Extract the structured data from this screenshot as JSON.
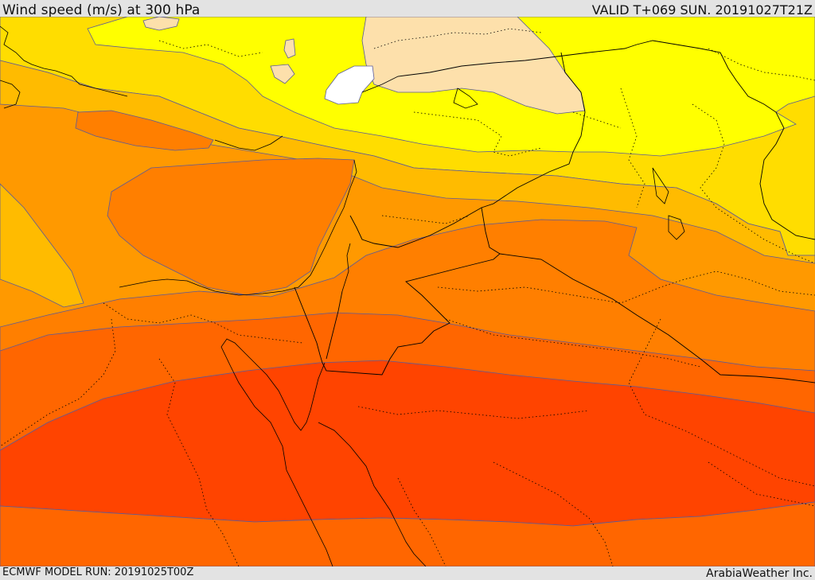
{
  "header": {
    "title": "Wind speed (m/s) at 300 hPa",
    "valid": "VALID T+069 SUN. 20191027T21Z"
  },
  "footer": {
    "model_run": "ECMWF MODEL RUN: 20191025T00Z",
    "credit": "ArabiaWeather Inc."
  },
  "map": {
    "variable": "wind speed",
    "level": "300 hPa",
    "shading_colors": {
      "white": "#ffffff",
      "peach": "#fde0ab",
      "yellow": "#ffff00",
      "gold": "#ffdd00",
      "amber": "#ffbb00",
      "light_orange": "#ff9900",
      "orange": "#ff7f00",
      "dark_orange": "#ff6600",
      "red_orange": "#ff4400"
    },
    "contour_line_color": "#5a5a9a",
    "boundary_color": "#000000"
  }
}
